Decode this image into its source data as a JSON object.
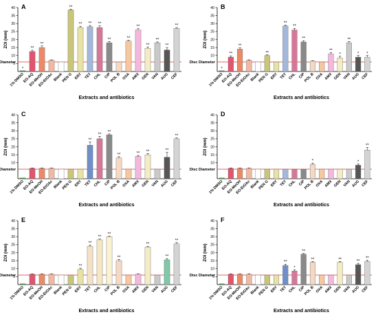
{
  "figure": {
    "ylabel": "ZOI (mm)",
    "xlabel": "Extracts and antibiotics",
    "disc_label": "Disc Diameter"
  },
  "chart_data": [
    {
      "panel": "A",
      "type": "bar",
      "categories": [
        "1% DMSO",
        "EO-AQ",
        "EO-MeOH",
        "EO-EtOAc",
        "Blank",
        "PEN G",
        "ERY",
        "TET",
        "CHL",
        "CIP",
        "POL B",
        "OXA",
        "AMX",
        "GEN",
        "VAN",
        "AUG",
        "CEF"
      ],
      "values": [
        0.5,
        12.5,
        15,
        7,
        6,
        38.5,
        27.5,
        28,
        27.5,
        18,
        6,
        19,
        26,
        14.5,
        18,
        13.5,
        27
      ],
      "errors": [
        0,
        0.8,
        1,
        0.3,
        0,
        0.5,
        0.8,
        0.8,
        1,
        0.8,
        0,
        0.5,
        0.8,
        0.8,
        0.5,
        1.5,
        0.5
      ],
      "sig": [
        "*",
        "**",
        "**",
        "",
        "",
        "**",
        "**",
        "**",
        "**",
        "**",
        "",
        "**",
        "**",
        "**",
        "**",
        "**",
        "**"
      ],
      "colors": [
        "#3b9a3b",
        "#e05670",
        "#ec8a68",
        "#f2b8a0",
        "#ffffff",
        "#c9c67a",
        "#e8e2a6",
        "#a4b8dc",
        "#d6779a",
        "#8a8a8a",
        "#f4d9c4",
        "#f6c7a1",
        "#f5b8dd",
        "#f4ecc2",
        "#c9c9c9",
        "#565656",
        "#d4d4d4"
      ],
      "ylim": [
        0,
        40
      ],
      "yticks": [
        5,
        10,
        15,
        20,
        25,
        30,
        35,
        40
      ],
      "disc": 6
    },
    {
      "panel": "B",
      "type": "bar",
      "categories": [
        "1% DMSO",
        "EO-AQ",
        "EO-MeOH",
        "EO-EtOAc",
        "Blank",
        "PEN G",
        "ERY",
        "TET",
        "CHL",
        "CIP",
        "POL B",
        "OXA",
        "AMX",
        "GEN",
        "VAN",
        "AUG",
        "CEF"
      ],
      "values": [
        0.5,
        9,
        14,
        7,
        6,
        10,
        6,
        28.5,
        26,
        18.5,
        6.5,
        6,
        11,
        8.5,
        18,
        9,
        9
      ],
      "errors": [
        0,
        0.8,
        0.8,
        0.3,
        0,
        0.4,
        0,
        0.5,
        1,
        0.8,
        0.3,
        0,
        0.8,
        1,
        0.8,
        1,
        1
      ],
      "sig": [
        "*",
        "**",
        "**",
        "",
        "",
        "**",
        "",
        "**",
        "**",
        "**",
        "",
        "",
        "**",
        "*",
        "**",
        "*",
        "*"
      ],
      "colors": [
        "#3b9a3b",
        "#e05670",
        "#ec8a68",
        "#f2b8a0",
        "#ffffff",
        "#c9c67a",
        "#e8e2a6",
        "#a4b8dc",
        "#d6779a",
        "#8a8a8a",
        "#f4d9c4",
        "#f6c7a1",
        "#f5b8dd",
        "#f4ecc2",
        "#c9c9c9",
        "#565656",
        "#d4d4d4"
      ],
      "ylim": [
        0,
        40
      ],
      "yticks": [
        10,
        15,
        20,
        25,
        30,
        35,
        40
      ],
      "disc": 6
    },
    {
      "panel": "C",
      "type": "bar",
      "categories": [
        "1% DMSO",
        "EO-AQ",
        "EO-MeOH",
        "EO-EtOAc",
        "Blank",
        "PEN G",
        "ERY",
        "TET",
        "CHL",
        "CIP",
        "POL B",
        "OXA",
        "AMX",
        "GEN",
        "VAN",
        "AUG",
        "CEF"
      ],
      "values": [
        0.5,
        6.5,
        6.5,
        6.5,
        6,
        6,
        6,
        21,
        25,
        27.5,
        13,
        6,
        14,
        15,
        6,
        13.5,
        25
      ],
      "errors": [
        0,
        0.3,
        0.3,
        0.3,
        0,
        0,
        0,
        2,
        1.5,
        0.5,
        0.8,
        0,
        0.6,
        0.8,
        0,
        3,
        0.5
      ],
      "sig": [
        "",
        "",
        "",
        "",
        "",
        "",
        "",
        "**",
        "**",
        "**",
        "**",
        "",
        "**",
        "**",
        "",
        "**",
        "**"
      ],
      "colors": [
        "#3b9a3b",
        "#e05670",
        "#ec8a68",
        "#f2b8a0",
        "#ffffff",
        "#c9c67a",
        "#e8e2a6",
        "#6f8fc8",
        "#d6779a",
        "#8a8a8a",
        "#f4d9c4",
        "#f6c7a1",
        "#f5b8dd",
        "#f4ecc2",
        "#c9c9c9",
        "#565656",
        "#d4d4d4"
      ],
      "ylim": [
        0,
        40
      ],
      "yticks": [
        10,
        15,
        20,
        25,
        30,
        35,
        40
      ],
      "disc": 6
    },
    {
      "panel": "D",
      "type": "bar",
      "categories": [
        "1% DMSO",
        "EO-AQ",
        "EO-MeOH",
        "EO-EtOAc",
        "Blank",
        "PEN G",
        "ERY",
        "TET",
        "CHL",
        "CIP",
        "POL B",
        "OXA",
        "AMX",
        "GEN",
        "VAN",
        "AUG",
        "CEF"
      ],
      "values": [
        0.5,
        6.5,
        6.5,
        6.5,
        6,
        6,
        6,
        6,
        6,
        6,
        9,
        6,
        6,
        6,
        6,
        8.5,
        18
      ],
      "errors": [
        0,
        0.3,
        0.3,
        0.3,
        0,
        0,
        0,
        0,
        0,
        0,
        0.8,
        0,
        0,
        0,
        0,
        0.8,
        1.5
      ],
      "sig": [
        "",
        "",
        "",
        "",
        "",
        "",
        "",
        "",
        "",
        "",
        "*",
        "",
        "",
        "",
        "",
        "*",
        "**"
      ],
      "colors": [
        "#3b9a3b",
        "#e05670",
        "#ec8a68",
        "#f2b8a0",
        "#ffffff",
        "#c9c67a",
        "#e8e2a6",
        "#a4b8dc",
        "#d6779a",
        "#8a8a8a",
        "#f4d9c4",
        "#f6c7a1",
        "#f5b8dd",
        "#f4ecc2",
        "#c9c9c9",
        "#565656",
        "#d4d4d4"
      ],
      "ylim": [
        0,
        40
      ],
      "yticks": [
        10,
        15,
        20,
        25,
        30,
        35,
        40
      ],
      "disc": 6
    },
    {
      "panel": "E",
      "type": "bar",
      "categories": [
        "1% DMSO",
        "EO-AQ",
        "EO-MeOH",
        "EO-EtOAc",
        "Blank",
        "PEN G",
        "ERY",
        "TET",
        "CHL",
        "CIP",
        "POL B",
        "OXA",
        "AMX",
        "GEN",
        "VAN",
        "AUG",
        "CEF"
      ],
      "values": [
        0.5,
        6.5,
        6.5,
        6.5,
        6,
        6,
        9.5,
        24,
        28,
        30,
        15,
        6,
        6.5,
        23.5,
        6,
        15.5,
        25.5
      ],
      "errors": [
        0,
        0.3,
        0.3,
        0.3,
        0,
        0,
        0.8,
        0.8,
        0.5,
        0.3,
        0.8,
        0,
        0.3,
        0.5,
        0,
        0.8,
        0.8
      ],
      "sig": [
        "",
        "",
        "",
        "",
        "",
        "",
        "**",
        "**",
        "**",
        "**",
        "**",
        "",
        "",
        "**",
        "",
        "**",
        "**"
      ],
      "colors": [
        "#3b9a3b",
        "#e05670",
        "#ec8a68",
        "#f2b8a0",
        "#ffffff",
        "#c9c67a",
        "#e8e2a6",
        "#f4e1c6",
        "#f5e8c0",
        "#fbf2d0",
        "#f4d9c4",
        "#f6c7a1",
        "#f5b8dd",
        "#f4ecc2",
        "#c9c9c9",
        "#80c8a8",
        "#d4d4d4"
      ],
      "ylim": [
        0,
        40
      ],
      "yticks": [
        5,
        10,
        15,
        20,
        25,
        30,
        35,
        40
      ],
      "disc": 6
    },
    {
      "panel": "F",
      "type": "bar",
      "categories": [
        "1% DMSO",
        "EO-AQ",
        "EO-MeOH",
        "EO-EtOAc",
        "Blank",
        "PEN G",
        "ERY",
        "TET",
        "CHL",
        "CIP",
        "POL B",
        "OXA",
        "AMX",
        "GEN",
        "VAN",
        "AUG",
        "CEF"
      ],
      "values": [
        0.5,
        6.5,
        6.5,
        6.5,
        6,
        6,
        6,
        12,
        8.5,
        19,
        14,
        6,
        6,
        14,
        6,
        12.5,
        14.5
      ],
      "errors": [
        0,
        0.3,
        0.3,
        0.3,
        0,
        0,
        0,
        0.8,
        0.8,
        0.5,
        0.5,
        0,
        0,
        0.5,
        0,
        0.8,
        0.8
      ],
      "sig": [
        "",
        "",
        "",
        "",
        "",
        "",
        "",
        "**",
        "*",
        "**",
        "**",
        "",
        "",
        "**",
        "",
        "**",
        "**"
      ],
      "colors": [
        "#3b9a3b",
        "#e05670",
        "#ec8a68",
        "#f2b8a0",
        "#ffffff",
        "#c9c67a",
        "#e8e2a6",
        "#6f8fc8",
        "#d6779a",
        "#8a8a8a",
        "#f4d9c4",
        "#f6c7a1",
        "#f5b8dd",
        "#f4ecc2",
        "#c9c9c9",
        "#565656",
        "#d4d4d4"
      ],
      "ylim": [
        0,
        40
      ],
      "yticks": [
        5,
        10,
        15,
        20,
        25,
        30,
        35,
        40
      ],
      "disc": 6
    }
  ]
}
